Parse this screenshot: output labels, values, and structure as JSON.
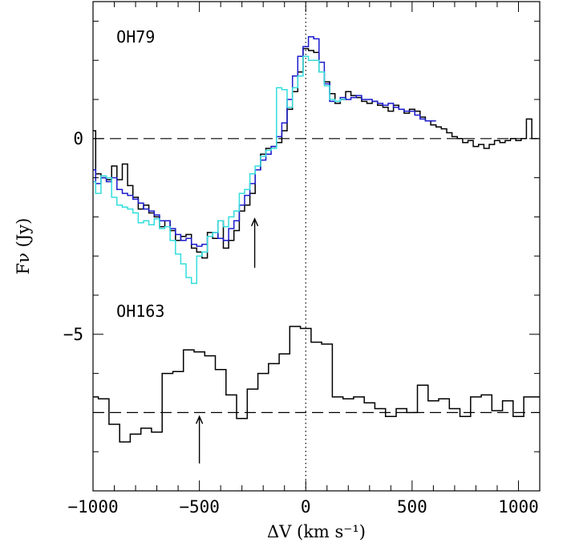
{
  "chart_data": {
    "type": "line",
    "xlabel": "ΔV (km s⁻¹)",
    "ylabel": "Fν (Jy)",
    "xlim": [
      -1000,
      1100
    ],
    "ylim": [
      -9,
      3.5
    ],
    "x_ticks": [
      -1000,
      -500,
      0,
      500,
      1000
    ],
    "x_tick_labels": [
      "−1000",
      "−500",
      "0",
      "500",
      "1000"
    ],
    "y_ticks": [
      0,
      -5
    ],
    "y_tick_labels": [
      "0",
      "−5"
    ],
    "reference_lines": [
      {
        "axis": "y",
        "value": 0,
        "style": "dashed"
      },
      {
        "axis": "y",
        "value": -7,
        "style": "dashed"
      },
      {
        "axis": "x",
        "value": 0,
        "style": "dotted"
      }
    ],
    "panels": [
      {
        "label": "OH79",
        "label_pos": [
          -890,
          2.45
        ],
        "arrow": {
          "x": -240,
          "y_from": -3.3,
          "y_to": -2.05
        },
        "series": [
          {
            "color": "#000000",
            "x": [
              -1000,
              -975,
              -950,
              -925,
              -900,
              -875,
              -850,
              -825,
              -800,
              -775,
              -750,
              -725,
              -700,
              -675,
              -650,
              -625,
              -600,
              -575,
              -550,
              -525,
              -500,
              -475,
              -450,
              -425,
              -400,
              -375,
              -350,
              -325,
              -300,
              -275,
              -250,
              -225,
              -200,
              -175,
              -150,
              -125,
              -100,
              -75,
              -50,
              -25,
              0,
              25,
              50,
              75,
              100,
              125,
              150,
              175,
              200,
              225,
              250,
              275,
              300,
              325,
              350,
              375,
              400,
              425,
              450,
              475,
              500,
              525,
              550,
              575,
              600,
              625,
              650,
              675,
              700,
              725,
              750,
              775,
              800,
              825,
              850,
              875,
              900,
              925,
              950,
              975,
              1000,
              1025,
              1050,
              1075
            ],
            "y": [
              0.2,
              -0.9,
              -1.0,
              -1.05,
              -0.7,
              -1.05,
              -0.65,
              -1.2,
              -1.5,
              -1.8,
              -1.7,
              -1.9,
              -2.0,
              -2.25,
              -2.1,
              -2.35,
              -2.6,
              -2.5,
              -2.45,
              -2.8,
              -2.9,
              -3.05,
              -2.4,
              -2.55,
              -2.1,
              -2.8,
              -2.6,
              -2.35,
              -1.85,
              -1.7,
              -1.4,
              -0.8,
              -0.4,
              -0.25,
              -0.2,
              -0.1,
              0.2,
              0.75,
              1.2,
              1.7,
              2.3,
              2.25,
              2.2,
              1.7,
              1.45,
              1.15,
              0.9,
              1.0,
              1.2,
              1.1,
              1.05,
              0.95,
              0.9,
              0.95,
              0.85,
              0.8,
              0.7,
              0.85,
              0.75,
              0.65,
              0.75,
              0.7,
              0.55,
              0.45,
              0.35,
              0.3,
              0.25,
              0.15,
              0.05,
              0.0,
              -0.1,
              -0.05,
              -0.2,
              -0.15,
              -0.25,
              -0.15,
              -0.05,
              -0.1,
              -0.05,
              0.0,
              -0.05,
              0.0,
              0.5,
              0.0
            ]
          },
          {
            "color": "#1a1acc",
            "x": [
              -1000,
              -975,
              -950,
              -925,
              -900,
              -875,
              -850,
              -825,
              -800,
              -775,
              -750,
              -725,
              -700,
              -675,
              -650,
              -625,
              -600,
              -575,
              -550,
              -525,
              -500,
              -475,
              -450,
              -425,
              -400,
              -375,
              -350,
              -325,
              -300,
              -275,
              -250,
              -225,
              -200,
              -175,
              -150,
              -125,
              -100,
              -75,
              -50,
              -25,
              0,
              25,
              50,
              75,
              100,
              125,
              150,
              175,
              200,
              225,
              250,
              275,
              300,
              325,
              350,
              375,
              400,
              425,
              450,
              475,
              500,
              525,
              550,
              575,
              600
            ],
            "y": [
              -0.8,
              -1.15,
              -1.0,
              -1.1,
              -1.0,
              -1.3,
              -1.4,
              -1.45,
              -1.55,
              -1.65,
              -1.8,
              -1.85,
              -1.95,
              -2.1,
              -2.1,
              -2.3,
              -2.45,
              -2.6,
              -2.55,
              -2.7,
              -2.75,
              -2.7,
              -2.5,
              -2.4,
              -2.55,
              -2.6,
              -2.3,
              -2.1,
              -1.7,
              -1.45,
              -1.15,
              -0.8,
              -0.55,
              -0.4,
              -0.2,
              0.05,
              0.4,
              1.0,
              1.6,
              2.1,
              2.35,
              2.6,
              2.55,
              1.95,
              1.4,
              0.95,
              0.95,
              1.05,
              1.0,
              1.05,
              1.1,
              1.0,
              1.0,
              0.95,
              0.9,
              0.85,
              0.9,
              0.8,
              0.75,
              0.7,
              0.7,
              0.6,
              0.5,
              0.45,
              0.45
            ]
          },
          {
            "color": "#33dddd",
            "x": [
              -1000,
              -975,
              -950,
              -925,
              -900,
              -875,
              -850,
              -825,
              -800,
              -775,
              -750,
              -725,
              -700,
              -675,
              -650,
              -625,
              -600,
              -575,
              -550,
              -525,
              -500,
              -475,
              -450,
              -425,
              -400,
              -375,
              -350,
              -325,
              -300,
              -275,
              -250,
              -225,
              -200,
              -175,
              -150,
              -125,
              -100,
              -75,
              -50,
              -25,
              0,
              25,
              50,
              75,
              100,
              125,
              150,
              175
            ],
            "y": [
              -1.1,
              -1.4,
              -0.95,
              -1.0,
              -1.5,
              -1.7,
              -1.75,
              -1.8,
              -1.9,
              -2.15,
              -2.1,
              -2.2,
              -2.05,
              -2.3,
              -2.25,
              -2.6,
              -2.95,
              -3.2,
              -3.55,
              -3.7,
              -3.0,
              -2.9,
              -2.5,
              -2.4,
              -2.1,
              -2.25,
              -2.0,
              -1.85,
              -1.4,
              -1.3,
              -0.9,
              -0.7,
              -0.45,
              -0.3,
              -0.25,
              1.3,
              1.25,
              0.8,
              1.3,
              1.6,
              2.1,
              2.0,
              2.0,
              1.7,
              1.35,
              1.0,
              0.95,
              1.0
            ]
          }
        ]
      },
      {
        "label": "OH163",
        "label_pos": [
          -890,
          -4.55
        ],
        "arrow": {
          "x": -500,
          "y_from": -8.3,
          "y_to": -7.1
        },
        "series": [
          {
            "color": "#000000",
            "x": [
              -1000,
              -950,
              -900,
              -850,
              -800,
              -750,
              -700,
              -650,
              -600,
              -550,
              -500,
              -450,
              -400,
              -350,
              -300,
              -250,
              -200,
              -150,
              -100,
              -50,
              0,
              50,
              100,
              150,
              200,
              250,
              300,
              350,
              400,
              450,
              500,
              550,
              600,
              650,
              700,
              750,
              800,
              850,
              900,
              950,
              1000,
              1050,
              1100
            ],
            "y": [
              -6.6,
              -6.65,
              -7.3,
              -7.75,
              -7.55,
              -7.4,
              -7.5,
              -6.0,
              -5.95,
              -5.4,
              -5.45,
              -5.55,
              -5.9,
              -6.55,
              -7.15,
              -6.4,
              -6.0,
              -5.75,
              -5.5,
              -4.8,
              -4.85,
              -5.2,
              -5.25,
              -6.6,
              -6.65,
              -6.6,
              -6.75,
              -6.9,
              -7.1,
              -6.9,
              -7.0,
              -6.3,
              -6.7,
              -6.65,
              -6.9,
              -7.1,
              -6.6,
              -6.55,
              -6.95,
              -6.7,
              -7.1,
              -6.6,
              -6.6
            ]
          }
        ]
      }
    ]
  }
}
